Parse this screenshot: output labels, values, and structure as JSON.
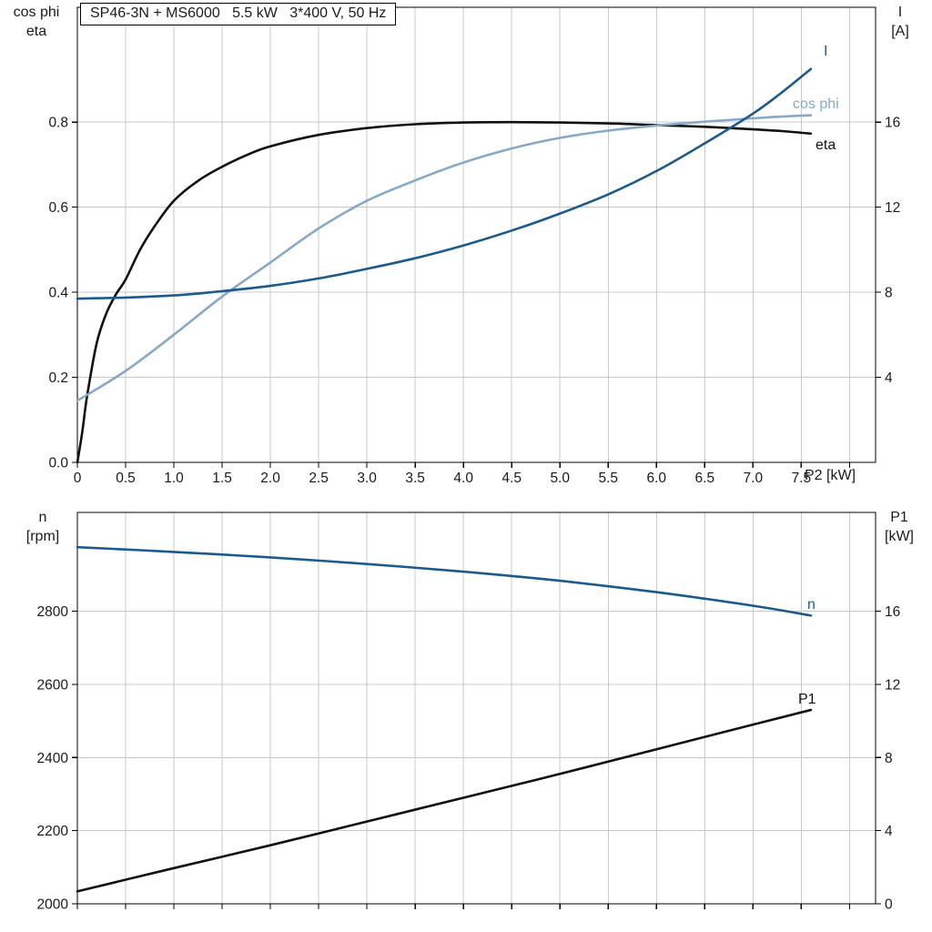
{
  "title": "SP46-3N + MS6000   5.5 kW   3*400 V, 50 Hz",
  "colors": {
    "curve_black": "#111111",
    "curve_dark_blue": "#1b5a8e",
    "curve_light_blue": "#86a9c9",
    "grid": "#c8c8c8",
    "frame": "#000000",
    "text": "#1a1a1a",
    "background": "#ffffff"
  },
  "labels": {
    "top_left_1": "cos phi",
    "top_left_2": "eta",
    "top_right_1": "I",
    "top_right_2": "[A]",
    "bottom_left_1": "n",
    "bottom_left_2": "[rpm]",
    "bottom_right_1": "P1",
    "bottom_right_2": "[kW]",
    "x_axis": "P2 [kW]",
    "curve_I": "I",
    "curve_cos_phi": "cos phi",
    "curve_eta": "eta",
    "curve_n": "n",
    "curve_P1": "P1"
  },
  "chart_data": [
    {
      "type": "line",
      "title": "SP46-3N + MS6000   5.5 kW   3*400 V, 50 Hz",
      "xlabel": "P2 [kW]",
      "ylabel_left": "cos phi / eta",
      "ylabel_right": "I [A]",
      "xlim": [
        0,
        8.27
      ],
      "ylim_left": [
        0,
        1.07
      ],
      "ylim_right": [
        0,
        21.4
      ],
      "grid": true,
      "legend_position": "curve-end-labels",
      "x_ticks": [
        0,
        0.5,
        1,
        1.5,
        2,
        2.5,
        3,
        3.5,
        4,
        4.5,
        5,
        5.5,
        6,
        6.5,
        7,
        7.5,
        8
      ],
      "x_tick_labels": [
        "0",
        "0.5",
        "1.0",
        "1.5",
        "2.0",
        "2.5",
        "3.0",
        "3.5",
        "4.0",
        "4.5",
        "5.0",
        "5.5",
        "6.0",
        "6.5",
        "7.0",
        "7.5",
        ""
      ],
      "y_ticks_left": [
        0,
        0.2,
        0.4,
        0.6,
        0.8
      ],
      "y_tick_labels_left": [
        "0.0",
        "0.2",
        "0.4",
        "0.6",
        "0.8"
      ],
      "y_ticks_right": [
        4,
        8,
        12,
        16
      ],
      "y_tick_labels_right": [
        "4",
        "8",
        "12",
        "16"
      ],
      "series": [
        {
          "name": "eta",
          "axis": "left",
          "color_key": "curve_black",
          "x": [
            0,
            0.05,
            0.1,
            0.2,
            0.3,
            0.4,
            0.5,
            0.65,
            0.8,
            1.0,
            1.25,
            1.5,
            1.75,
            2.0,
            2.5,
            3.0,
            3.5,
            4.0,
            4.5,
            5.0,
            5.5,
            6.0,
            6.5,
            7.0,
            7.3,
            7.6
          ],
          "y": [
            0,
            0.07,
            0.155,
            0.28,
            0.35,
            0.395,
            0.43,
            0.5,
            0.555,
            0.615,
            0.662,
            0.695,
            0.722,
            0.743,
            0.77,
            0.786,
            0.795,
            0.799,
            0.8,
            0.799,
            0.797,
            0.793,
            0.789,
            0.783,
            0.779,
            0.773
          ]
        },
        {
          "name": "cos phi",
          "axis": "left",
          "color_key": "curve_light_blue",
          "x": [
            0,
            0.5,
            1.0,
            1.5,
            2.0,
            2.5,
            3.0,
            3.5,
            4.0,
            4.5,
            5.0,
            5.5,
            6.0,
            6.5,
            7.0,
            7.3,
            7.6
          ],
          "y": [
            0.145,
            0.215,
            0.3,
            0.39,
            0.47,
            0.55,
            0.615,
            0.663,
            0.705,
            0.738,
            0.763,
            0.78,
            0.792,
            0.801,
            0.809,
            0.813,
            0.816
          ]
        },
        {
          "name": "I",
          "axis": "right",
          "color_key": "curve_dark_blue",
          "x": [
            0,
            0.5,
            1,
            1.5,
            2,
            2.5,
            3,
            3.5,
            4,
            4.5,
            5,
            5.5,
            6,
            6.5,
            7,
            7.3,
            7.6
          ],
          "y": [
            7.7,
            7.75,
            7.85,
            8.05,
            8.3,
            8.65,
            9.1,
            9.6,
            10.2,
            10.9,
            11.7,
            12.6,
            13.7,
            15.0,
            16.4,
            17.4,
            18.5
          ]
        }
      ]
    },
    {
      "type": "line",
      "title": "",
      "xlabel": "",
      "ylabel_left": "n [rpm]",
      "ylabel_right": "P1 [kW]",
      "xlim": [
        0,
        8.27
      ],
      "ylim_left": [
        2000,
        3070
      ],
      "ylim_right": [
        0,
        21.4
      ],
      "grid": true,
      "legend_position": "curve-end-labels",
      "x_ticks": [
        0,
        0.5,
        1,
        1.5,
        2,
        2.5,
        3,
        3.5,
        4,
        4.5,
        5,
        5.5,
        6,
        6.5,
        7,
        7.5,
        8
      ],
      "x_tick_labels": [
        "",
        "",
        "",
        "",
        "",
        "",
        "",
        "",
        "",
        "",
        "",
        "",
        "",
        "",
        "",
        "",
        ""
      ],
      "y_ticks_left": [
        2000,
        2200,
        2400,
        2600,
        2800
      ],
      "y_tick_labels_left": [
        "2000",
        "2200",
        "2400",
        "2600",
        "2800"
      ],
      "y_ticks_right": [
        0,
        4,
        8,
        12,
        16
      ],
      "y_tick_labels_right": [
        "0",
        "4",
        "8",
        "12",
        "16"
      ],
      "series": [
        {
          "name": "n",
          "axis": "left",
          "color_key": "curve_dark_blue",
          "x": [
            0,
            1,
            2,
            3,
            4,
            5,
            6,
            7,
            7.6
          ],
          "y": [
            2975,
            2962,
            2947,
            2929,
            2908,
            2883,
            2852,
            2815,
            2788
          ]
        },
        {
          "name": "P1",
          "axis": "right",
          "color_key": "curve_black",
          "x": [
            0,
            1,
            2,
            3,
            4,
            5,
            6,
            7,
            7.6
          ],
          "y": [
            0.68,
            1.95,
            3.2,
            4.5,
            5.8,
            7.1,
            8.45,
            9.8,
            10.6
          ]
        }
      ]
    }
  ]
}
